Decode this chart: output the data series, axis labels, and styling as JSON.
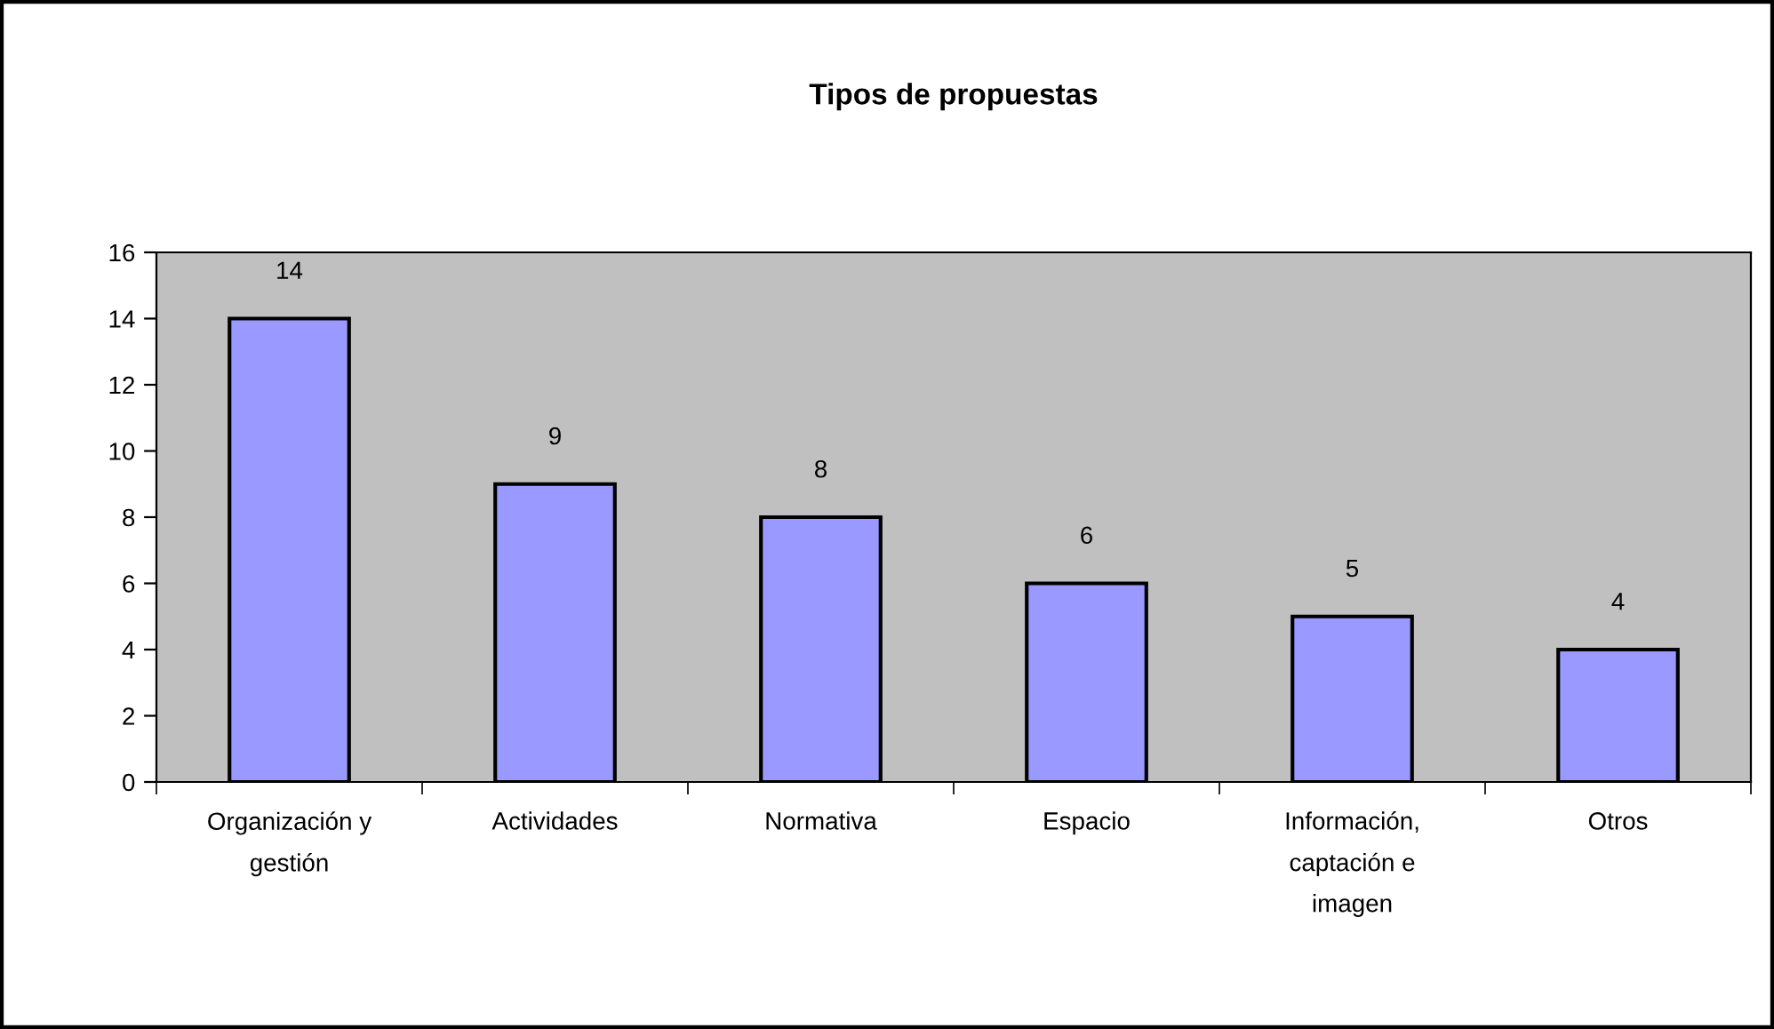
{
  "chart_data": {
    "type": "bar",
    "title": "Tipos de propuestas",
    "categories": [
      "Organización y gestión",
      "Actividades",
      "Normativa",
      "Espacio",
      "Información, captación e imagen",
      "Otros"
    ],
    "values": [
      14,
      9,
      8,
      6,
      5,
      4
    ],
    "color": "#9999ff",
    "ylim": [
      0,
      16
    ],
    "yticks": [
      0,
      2,
      4,
      6,
      8,
      10,
      12,
      14,
      16
    ],
    "grid": false,
    "data_labels": true,
    "legend": false
  }
}
